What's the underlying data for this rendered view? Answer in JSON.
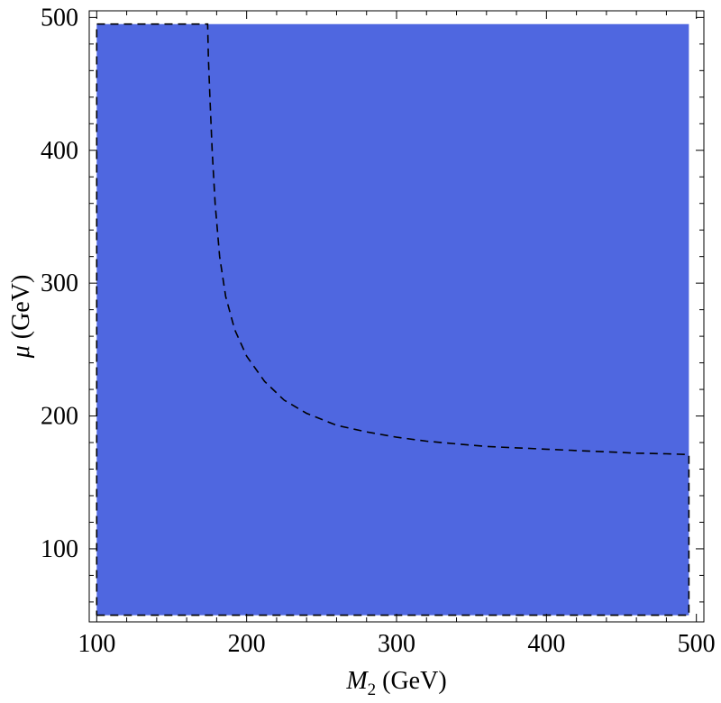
{
  "chart_data": {
    "type": "area",
    "title": "",
    "xlabel": {
      "symbol": "M",
      "subscript": "2",
      "unit": " (GeV)"
    },
    "ylabel": {
      "symbol": "μ",
      "unit": " (GeV)"
    },
    "xlim": [
      95,
      505
    ],
    "ylim": [
      45,
      505
    ],
    "x_ticks": [
      100,
      200,
      300,
      400,
      500
    ],
    "y_ticks": [
      100,
      200,
      300,
      400,
      500
    ],
    "x_tick_labels": [
      "100",
      "200",
      "300",
      "400",
      "500"
    ],
    "y_tick_labels": [
      "100",
      "200",
      "300",
      "400",
      "500"
    ],
    "grid": false,
    "fill_color": "#4F67E0",
    "filled_region": {
      "x": [
        100,
        495
      ],
      "y": [
        50,
        495
      ]
    },
    "dashed_boundary": [
      {
        "x": 100,
        "y": 50
      },
      {
        "x": 495,
        "y": 50
      },
      {
        "x": 495,
        "y": 171
      },
      {
        "x": 480,
        "y": 171.5
      },
      {
        "x": 460,
        "y": 172
      },
      {
        "x": 440,
        "y": 173
      },
      {
        "x": 420,
        "y": 174
      },
      {
        "x": 400,
        "y": 175
      },
      {
        "x": 380,
        "y": 176
      },
      {
        "x": 360,
        "y": 177
      },
      {
        "x": 340,
        "y": 179
      },
      {
        "x": 320,
        "y": 181
      },
      {
        "x": 300,
        "y": 184
      },
      {
        "x": 280,
        "y": 188
      },
      {
        "x": 260,
        "y": 193
      },
      {
        "x": 240,
        "y": 202
      },
      {
        "x": 225,
        "y": 212
      },
      {
        "x": 212,
        "y": 226
      },
      {
        "x": 200,
        "y": 245
      },
      {
        "x": 192,
        "y": 265
      },
      {
        "x": 186,
        "y": 290
      },
      {
        "x": 182,
        "y": 320
      },
      {
        "x": 179,
        "y": 360
      },
      {
        "x": 177,
        "y": 400
      },
      {
        "x": 175.5,
        "y": 440
      },
      {
        "x": 174.5,
        "y": 470
      },
      {
        "x": 174,
        "y": 495
      },
      {
        "x": 100,
        "y": 495
      },
      {
        "x": 100,
        "y": 50
      }
    ]
  }
}
